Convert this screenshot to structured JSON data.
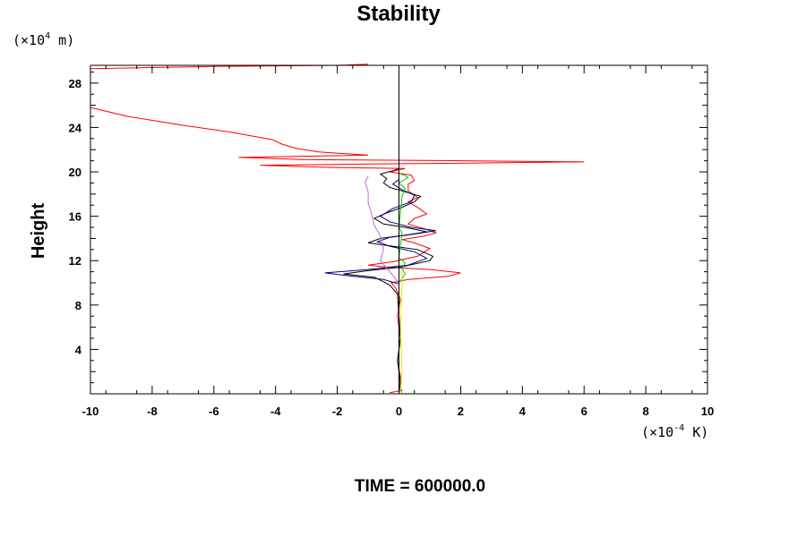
{
  "chart_data": {
    "type": "line",
    "title": "Stability",
    "ylabel": "Height",
    "y_unit": {
      "prefix": "(×10",
      "exp": "4",
      "suffix": " m)"
    },
    "x_unit": {
      "prefix": "(×10",
      "exp": "-4",
      "suffix": " K)"
    },
    "footer": "TIME = 600000.0",
    "xlim": [
      -10,
      10
    ],
    "ylim": [
      0,
      29.6
    ],
    "x_ticks": [
      "-10",
      "-8",
      "-6",
      "-4",
      "-2",
      "0",
      "2",
      "4",
      "6",
      "8",
      "10"
    ],
    "y_ticks": [
      "4",
      "8",
      "12",
      "16",
      "20",
      "24",
      "28"
    ],
    "grid": false,
    "series": [
      {
        "color": "#ff0000",
        "points": [
          [
            -0.3,
            0.1
          ],
          [
            0.1,
            0.3
          ],
          [
            0.0,
            0.6
          ],
          [
            0.05,
            1.5
          ],
          [
            -0.05,
            3
          ],
          [
            0.05,
            5
          ],
          [
            -0.05,
            7
          ],
          [
            0.05,
            8.5
          ],
          [
            -0.1,
            9.5
          ],
          [
            -0.25,
            10.0
          ],
          [
            0.3,
            10.3
          ],
          [
            1.6,
            10.6
          ],
          [
            2.0,
            10.9
          ],
          [
            1.0,
            11.2
          ],
          [
            -0.3,
            11.4
          ],
          [
            -1.0,
            11.6
          ],
          [
            -0.2,
            11.9
          ],
          [
            0.6,
            12.4
          ],
          [
            1.0,
            13.1
          ],
          [
            0.5,
            13.6
          ],
          [
            0.1,
            13.9
          ],
          [
            0.8,
            14.2
          ],
          [
            1.2,
            14.5
          ],
          [
            0.8,
            14.9
          ],
          [
            0.3,
            15.3
          ],
          [
            0.5,
            15.8
          ],
          [
            0.9,
            16.2
          ],
          [
            0.6,
            16.8
          ],
          [
            0.3,
            17.3
          ],
          [
            0.6,
            17.7
          ],
          [
            0.3,
            18.3
          ],
          [
            0.3,
            18.9
          ],
          [
            0.5,
            19.2
          ],
          [
            0.4,
            19.7
          ],
          [
            -0.3,
            20.0
          ],
          [
            0.2,
            20.3
          ],
          [
            -2.2,
            20.4
          ],
          [
            -4.5,
            20.6
          ],
          [
            -1.0,
            20.7
          ],
          [
            6.0,
            20.9
          ],
          [
            2.0,
            21.0
          ],
          [
            -3.0,
            21.1
          ],
          [
            -5.2,
            21.3
          ],
          [
            -1.0,
            21.5
          ],
          [
            -2.6,
            21.8
          ],
          [
            -3.3,
            22.1
          ],
          [
            -3.8,
            22.5
          ],
          [
            -4.1,
            22.9
          ],
          [
            -5.5,
            23.6
          ],
          [
            -7.0,
            24.2
          ],
          [
            -8.8,
            25.0
          ],
          [
            -10.0,
            25.8
          ],
          [
            -10.0,
            29.3
          ],
          [
            -6.0,
            29.5
          ],
          [
            -2.0,
            29.6
          ],
          [
            -1.0,
            29.7
          ]
        ]
      },
      {
        "color": "#000000",
        "points": [
          [
            0.0,
            0.1
          ],
          [
            0.05,
            1
          ],
          [
            -0.05,
            3
          ],
          [
            0.05,
            5
          ],
          [
            0.0,
            7
          ],
          [
            -0.05,
            9
          ],
          [
            -0.3,
            9.8
          ],
          [
            -0.5,
            10.1
          ],
          [
            -0.8,
            10.5
          ],
          [
            -1.8,
            10.8
          ],
          [
            -1.0,
            11.1
          ],
          [
            0.0,
            11.4
          ],
          [
            1.0,
            12.0
          ],
          [
            1.1,
            12.4
          ],
          [
            0.6,
            13.0
          ],
          [
            -0.2,
            13.3
          ],
          [
            -1.0,
            13.6
          ],
          [
            -0.6,
            14.0
          ],
          [
            0.2,
            14.3
          ],
          [
            0.9,
            14.6
          ],
          [
            0.2,
            15.0
          ],
          [
            -0.5,
            15.3
          ],
          [
            -0.8,
            15.8
          ],
          [
            -0.4,
            16.3
          ],
          [
            0.1,
            16.8
          ],
          [
            0.5,
            17.3
          ],
          [
            0.7,
            17.8
          ],
          [
            0.2,
            18.2
          ],
          [
            -0.3,
            18.6
          ],
          [
            -0.5,
            19.0
          ],
          [
            -0.4,
            19.4
          ],
          [
            -0.6,
            19.8
          ],
          [
            -0.2,
            20.1
          ],
          [
            0.0,
            20.3
          ]
        ]
      },
      {
        "color": "#000080",
        "points": [
          [
            0.0,
            9.9
          ],
          [
            -0.5,
            10.3
          ],
          [
            -1.5,
            10.6
          ],
          [
            -2.4,
            10.9
          ],
          [
            -1.0,
            11.2
          ],
          [
            0.3,
            11.6
          ],
          [
            0.9,
            12.2
          ],
          [
            0.5,
            12.8
          ],
          [
            -0.3,
            13.3
          ],
          [
            -0.7,
            13.7
          ],
          [
            -0.3,
            14.1
          ],
          [
            0.5,
            14.4
          ],
          [
            1.2,
            14.7
          ],
          [
            0.4,
            15.0
          ],
          [
            -0.3,
            15.5
          ],
          [
            -0.6,
            16.0
          ],
          [
            -0.2,
            16.7
          ],
          [
            0.4,
            17.3
          ],
          [
            0.5,
            17.9
          ],
          [
            0.1,
            18.4
          ],
          [
            -0.2,
            18.9
          ],
          [
            0.0,
            19.3
          ]
        ]
      },
      {
        "color": "#cc66cc",
        "points": [
          [
            0.0,
            10.0
          ],
          [
            -0.3,
            11.0
          ],
          [
            -0.6,
            12.0
          ],
          [
            -0.5,
            13.0
          ],
          [
            -0.6,
            14.2
          ],
          [
            -0.8,
            15.2
          ],
          [
            -0.9,
            16.3
          ],
          [
            -1.0,
            17.2
          ],
          [
            -1.0,
            18.2
          ],
          [
            -1.1,
            19.1
          ],
          [
            -1.0,
            19.6
          ]
        ]
      },
      {
        "color": "#00cc00",
        "points": [
          [
            0.1,
            0.1
          ],
          [
            0.0,
            0.4
          ],
          [
            0.0,
            10.0
          ],
          [
            0.2,
            10.8
          ],
          [
            0.1,
            11.3
          ],
          [
            0.2,
            11.8
          ],
          [
            0.0,
            12.3
          ],
          [
            0.1,
            14.5
          ],
          [
            0.0,
            15.0
          ],
          [
            0.1,
            17.8
          ],
          [
            0.2,
            18.5
          ],
          [
            0.0,
            19.0
          ],
          [
            0.3,
            19.5
          ],
          [
            0.0,
            19.9
          ]
        ]
      },
      {
        "color": "#e6e600",
        "points": [
          [
            0.05,
            0.2
          ],
          [
            0.1,
            2
          ],
          [
            0.05,
            6
          ],
          [
            0.1,
            10
          ],
          [
            0.1,
            11
          ]
        ]
      }
    ]
  }
}
